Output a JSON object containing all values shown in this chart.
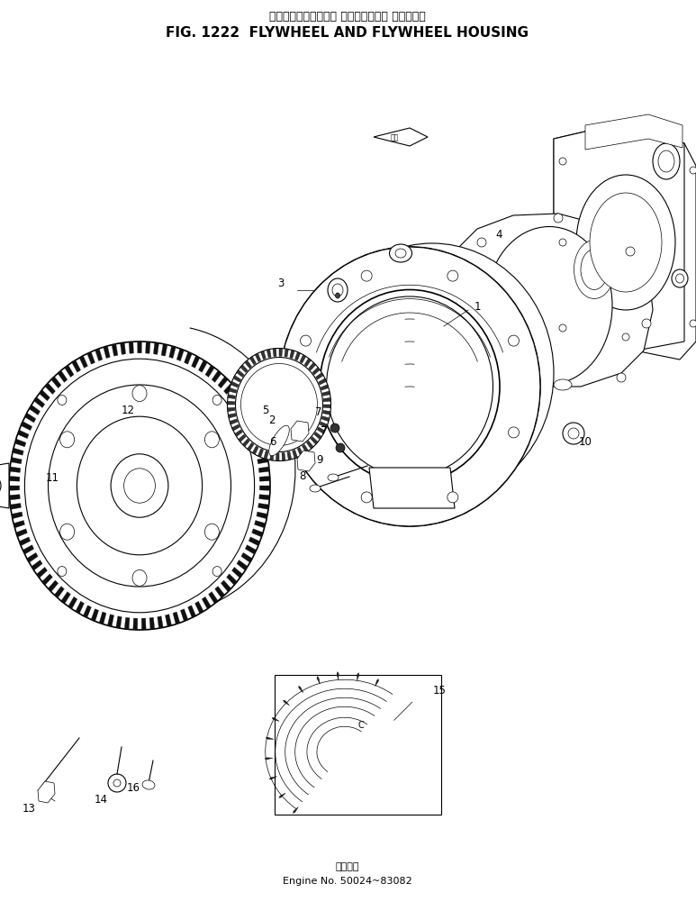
{
  "title_japanese": "フライホイールおよび フライホイール ハウジング",
  "title_english": "FIG. 1222  FLYWHEEL AND FLYWHEEL HOUSING",
  "subtitle_japanese": "適用号等",
  "subtitle_english": "Engine No. 50024~83082",
  "background_color": "#ffffff",
  "line_color": "#000000",
  "fig_width": 7.73,
  "fig_height": 10.12,
  "dpi": 100
}
